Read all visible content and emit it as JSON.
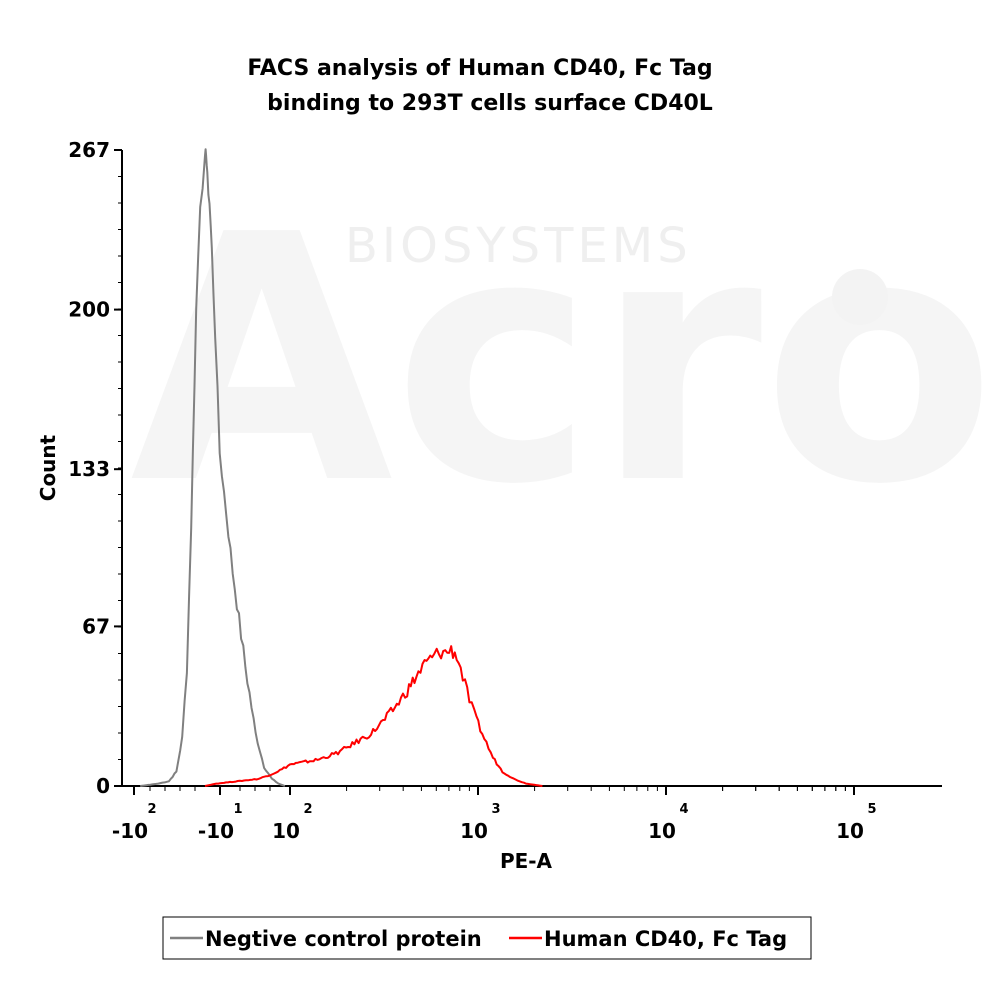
{
  "chart_data": {
    "type": "line",
    "title": [
      "FACS analysis of Human CD40, Fc Tag",
      "binding to 293T cells surface CD40L"
    ],
    "xlabel": "PE-A",
    "ylabel": "Count",
    "xscale": "biexponential",
    "xlim": [
      -300,
      300000
    ],
    "ylim": [
      0,
      267
    ],
    "y_ticks": [
      "0",
      "67",
      "133",
      "200",
      "267"
    ],
    "x_ticks": [
      {
        "base": "-10",
        "exp": "2"
      },
      {
        "base": "-10",
        "exp": "1"
      },
      {
        "base": "10",
        "exp": "2"
      },
      {
        "base": "10",
        "exp": "3"
      },
      {
        "base": "10",
        "exp": "4"
      },
      {
        "base": "10",
        "exp": "5"
      }
    ],
    "grid": false,
    "legend_position": "bottom",
    "series": [
      {
        "name": "Negtive control protein",
        "color": "#808080",
        "points": [
          [
            -120,
            0
          ],
          [
            -60,
            1
          ],
          [
            -40,
            2
          ],
          [
            -30,
            6
          ],
          [
            -24,
            20
          ],
          [
            -20,
            50
          ],
          [
            -17,
            110
          ],
          [
            -14,
            200
          ],
          [
            -12,
            245
          ],
          [
            -10,
            262
          ],
          [
            -9,
            267
          ],
          [
            -8,
            255
          ],
          [
            -6,
            245
          ],
          [
            -4,
            225
          ],
          [
            -1,
            190
          ],
          [
            3,
            140
          ],
          [
            8,
            90
          ],
          [
            14,
            50
          ],
          [
            22,
            22
          ],
          [
            32,
            8
          ],
          [
            45,
            3
          ],
          [
            60,
            1
          ],
          [
            80,
            0
          ]
        ]
      },
      {
        "name": "Human CD40, Fc Tag",
        "color": "#ff0000",
        "points": [
          [
            -10,
            0
          ],
          [
            0,
            1
          ],
          [
            10,
            2
          ],
          [
            25,
            3
          ],
          [
            45,
            5
          ],
          [
            70,
            7
          ],
          [
            100,
            9
          ],
          [
            140,
            11
          ],
          [
            180,
            14
          ],
          [
            220,
            18
          ],
          [
            270,
            22
          ],
          [
            320,
            28
          ],
          [
            370,
            34
          ],
          [
            420,
            40
          ],
          [
            470,
            46
          ],
          [
            520,
            51
          ],
          [
            570,
            54
          ],
          [
            620,
            56
          ],
          [
            670,
            56
          ],
          [
            720,
            57
          ],
          [
            770,
            55
          ],
          [
            830,
            46
          ],
          [
            900,
            36
          ],
          [
            980,
            28
          ],
          [
            1080,
            20
          ],
          [
            1200,
            12
          ],
          [
            1350,
            6
          ],
          [
            1550,
            3
          ],
          [
            1800,
            1
          ],
          [
            2200,
            0
          ]
        ]
      }
    ]
  },
  "watermark": {
    "brand": "Acro",
    "subtitle": "BIOSYSTEMS"
  }
}
